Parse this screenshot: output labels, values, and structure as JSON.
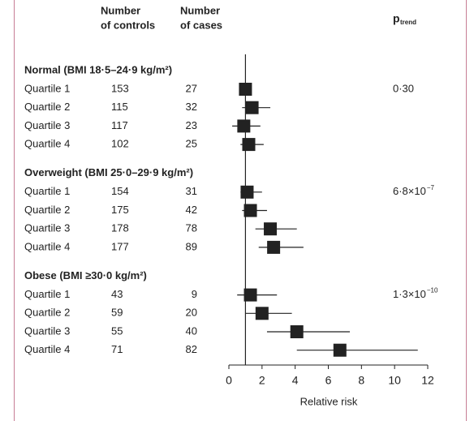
{
  "chart_data": {
    "type": "forest",
    "col_controls": [
      "Number",
      "of controls"
    ],
    "col_cases": [
      "Number",
      "of cases"
    ],
    "col_p": "p",
    "col_p_sub": "trend",
    "x_label": "Relative risk",
    "xlim": [
      0,
      12
    ],
    "xticks": [
      0,
      2,
      4,
      6,
      8,
      10,
      12
    ],
    "ref_line": 1,
    "color": "#222222",
    "groups": [
      {
        "name": "Normal (BMI 18·5–24·9 kg/m²)",
        "p_trend": "0·30",
        "p_trend_exp": null,
        "rows": [
          {
            "label": "Quartile 1",
            "controls": 153,
            "cases": 27,
            "rr": 1.0,
            "lower": null,
            "upper": null
          },
          {
            "label": "Quartile 2",
            "controls": 115,
            "cases": 32,
            "rr": 1.4,
            "lower": 0.8,
            "upper": 2.5
          },
          {
            "label": "Quartile 3",
            "controls": 117,
            "cases": 23,
            "rr": 0.9,
            "lower": 0.2,
            "upper": 1.9
          },
          {
            "label": "Quartile 4",
            "controls": 102,
            "cases": 25,
            "rr": 1.2,
            "lower": 0.7,
            "upper": 2.1
          }
        ]
      },
      {
        "name": "Overweight (BMI 25·0–29·9 kg/m²)",
        "p_trend": "6·8×10",
        "p_trend_exp": "−7",
        "rows": [
          {
            "label": "Quartile 1",
            "controls": 154,
            "cases": 31,
            "rr": 1.1,
            "lower": 0.7,
            "upper": 2.0
          },
          {
            "label": "Quartile 2",
            "controls": 175,
            "cases": 42,
            "rr": 1.3,
            "lower": 0.8,
            "upper": 2.3
          },
          {
            "label": "Quartile 3",
            "controls": 178,
            "cases": 78,
            "rr": 2.5,
            "lower": 1.6,
            "upper": 4.1
          },
          {
            "label": "Quartile 4",
            "controls": 177,
            "cases": 89,
            "rr": 2.7,
            "lower": 1.8,
            "upper": 4.5
          }
        ]
      },
      {
        "name": "Obese (BMI ≥30·0 kg/m²)",
        "p_trend": "1·3×10",
        "p_trend_exp": "−10",
        "rows": [
          {
            "label": "Quartile 1",
            "controls": 43,
            "cases": 9,
            "rr": 1.3,
            "lower": 0.5,
            "upper": 2.9
          },
          {
            "label": "Quartile 2",
            "controls": 59,
            "cases": 20,
            "rr": 2.0,
            "lower": 1.0,
            "upper": 3.8
          },
          {
            "label": "Quartile 3",
            "controls": 55,
            "cases": 40,
            "rr": 4.1,
            "lower": 2.3,
            "upper": 7.3
          },
          {
            "label": "Quartile 4",
            "controls": 71,
            "cases": 82,
            "rr": 6.7,
            "lower": 4.1,
            "upper": 11.4
          }
        ]
      }
    ]
  }
}
